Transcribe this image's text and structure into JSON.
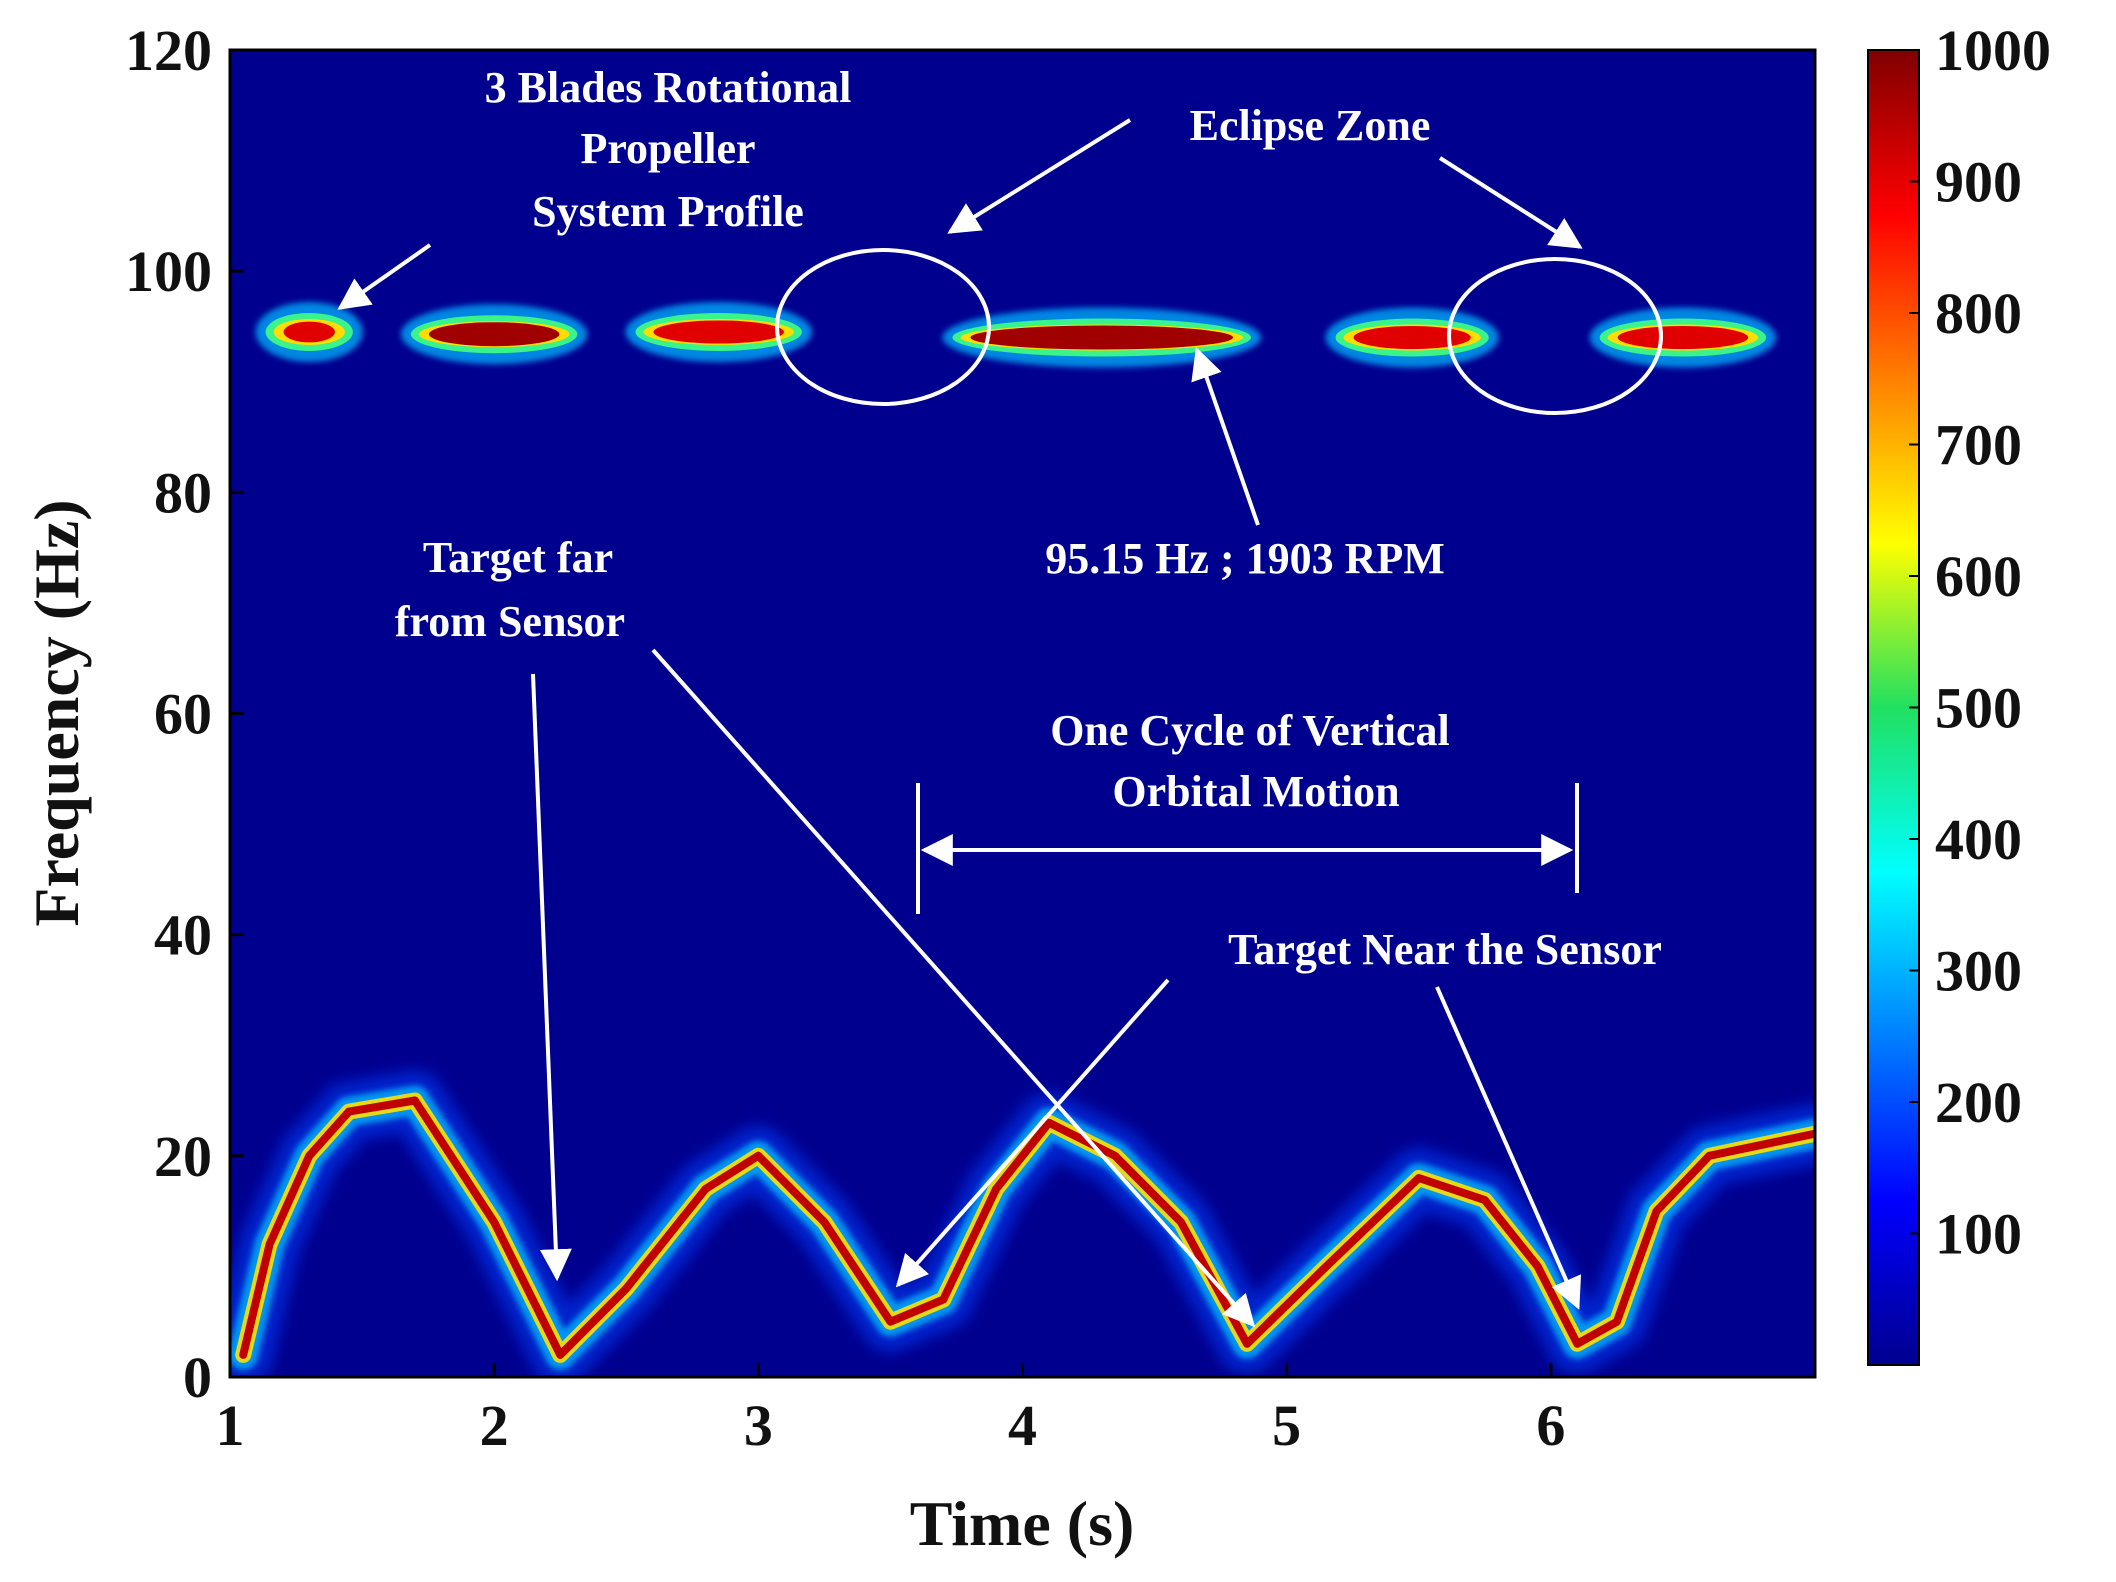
{
  "chart_data": {
    "type": "heatmap",
    "title": "",
    "xlabel": "Time (s)",
    "ylabel": "Frequency (Hz)",
    "xlim": [
      1,
      7
    ],
    "ylim": [
      0,
      120
    ],
    "xticks": [
      1,
      2,
      3,
      4,
      5,
      6
    ],
    "yticks": [
      0,
      20,
      40,
      60,
      80,
      100,
      120
    ],
    "colorbar": {
      "colormap": "jet",
      "range": [
        0,
        1000
      ],
      "ticks": [
        100,
        200,
        300,
        400,
        500,
        600,
        700,
        800,
        900,
        1000
      ]
    },
    "propeller_band": {
      "frequency_hz": 95.15,
      "segments": [
        {
          "t_start": 1.15,
          "t_end": 1.45,
          "freq": 94.5,
          "peak": 820
        },
        {
          "t_start": 1.7,
          "t_end": 2.3,
          "freq": 94.3,
          "peak": 1000
        },
        {
          "t_start": 2.55,
          "t_end": 3.15,
          "freq": 94.5,
          "peak": 950
        },
        {
          "t_start": 3.75,
          "t_end": 4.85,
          "freq": 94.0,
          "peak": 1000
        },
        {
          "t_start": 5.2,
          "t_end": 5.75,
          "freq": 94.0,
          "peak": 950
        },
        {
          "t_start": 6.2,
          "t_end": 6.8,
          "freq": 94.0,
          "peak": 950
        }
      ]
    },
    "doppler_track": [
      {
        "t": 1.05,
        "f": 2
      },
      {
        "t": 1.15,
        "f": 12
      },
      {
        "t": 1.3,
        "f": 20
      },
      {
        "t": 1.45,
        "f": 24
      },
      {
        "t": 1.7,
        "f": 25
      },
      {
        "t": 2.0,
        "f": 14
      },
      {
        "t": 2.25,
        "f": 2
      },
      {
        "t": 2.5,
        "f": 8
      },
      {
        "t": 2.8,
        "f": 17
      },
      {
        "t": 3.0,
        "f": 20
      },
      {
        "t": 3.25,
        "f": 14
      },
      {
        "t": 3.5,
        "f": 5
      },
      {
        "t": 3.7,
        "f": 7
      },
      {
        "t": 3.9,
        "f": 17
      },
      {
        "t": 4.1,
        "f": 23
      },
      {
        "t": 4.35,
        "f": 20
      },
      {
        "t": 4.6,
        "f": 14
      },
      {
        "t": 4.85,
        "f": 3
      },
      {
        "t": 5.15,
        "f": 10
      },
      {
        "t": 5.5,
        "f": 18
      },
      {
        "t": 5.75,
        "f": 16
      },
      {
        "t": 5.95,
        "f": 10
      },
      {
        "t": 6.1,
        "f": 3
      },
      {
        "t": 6.25,
        "f": 5
      },
      {
        "t": 6.4,
        "f": 15
      },
      {
        "t": 6.6,
        "f": 20
      },
      {
        "t": 7.0,
        "f": 22
      }
    ],
    "annotations": {
      "propeller_line1": "3 Blades Rotational",
      "propeller_line2": "Propeller",
      "propeller_line3": "System Profile",
      "eclipse": "Eclipse Zone",
      "rpm": "95.15 Hz ; 1903 RPM",
      "far_line1": "Target far",
      "far_line2": "from Sensor",
      "cycle_line1": "One Cycle of Vertical",
      "cycle_line2": "Orbital Motion",
      "near": "Target Near the Sensor"
    }
  }
}
